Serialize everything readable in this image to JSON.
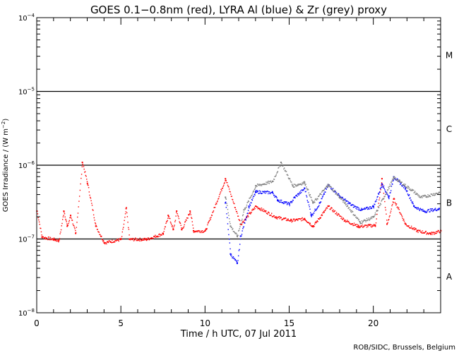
{
  "chart_data": {
    "type": "scatter",
    "title": "GOES 0.1−0.8nm (red), LYRA Al (blue) & Zr (grey) proxy",
    "xlabel": "Time / h UTC, 07 Jul 2011",
    "ylabel": "GOES Irradiance / (W m",
    "ylabel_sup": "−2",
    "ylabel_end": ")",
    "credit": "ROB/SIDC, Brussels, Belgium",
    "xlim": [
      0,
      24
    ],
    "ylim": [
      1e-08,
      0.0001
    ],
    "yscale": "log",
    "x_ticks": [
      "0",
      "5",
      "10",
      "15",
      "20"
    ],
    "y_ticks": [
      {
        "base": "10",
        "exp": "−4"
      },
      {
        "base": "10",
        "exp": "−5"
      },
      {
        "base": "10",
        "exp": "−6"
      },
      {
        "base": "10",
        "exp": "−7"
      },
      {
        "base": "10",
        "exp": "−8"
      }
    ],
    "flare_classes": [
      "M",
      "C",
      "B",
      "A"
    ],
    "class_lines": [
      1e-05,
      1e-06,
      1e-07
    ],
    "series": [
      {
        "name": "GOES 0.1-0.8nm",
        "color": "#ff0000",
        "x": [
          0,
          0.3,
          1,
          1.3,
          1.6,
          1.8,
          2.0,
          2.3,
          2.7,
          3.0,
          3.5,
          4,
          5,
          5.3,
          5.5,
          6.5,
          7.5,
          7.8,
          8.1,
          8.3,
          8.6,
          9.1,
          9.3,
          10,
          11.2,
          12.1,
          13,
          14.2,
          15.1,
          15.9,
          16.4,
          17.3,
          18.3,
          19.1,
          20.1,
          20.5,
          20.8,
          21.2,
          21.9,
          22.6,
          23.4,
          24
        ],
        "y": [
          2.4e-07,
          1.07e-07,
          1e-07,
          9.6e-08,
          2.4e-07,
          1.5e-07,
          2.1e-07,
          1.2e-07,
          1.1e-06,
          5.7e-07,
          1.5e-07,
          9e-08,
          1e-07,
          2.6e-07,
          1e-07,
          1e-07,
          1.2e-07,
          2.1e-07,
          1.35e-07,
          2.4e-07,
          1.35e-07,
          2.4e-07,
          1.3e-07,
          1.3e-07,
          6.6e-07,
          1.6e-07,
          2.8e-07,
          2e-07,
          1.8e-07,
          1.9e-07,
          1.5e-07,
          2.8e-07,
          1.8e-07,
          1.5e-07,
          1.55e-07,
          6.6e-07,
          1.6e-07,
          3.5e-07,
          1.6e-07,
          1.3e-07,
          1.2e-07,
          1.3e-07
        ]
      },
      {
        "name": "LYRA Al proxy",
        "color": "#0000ff",
        "x": [
          11.2,
          11.5,
          11.9,
          12.1,
          12.6,
          13,
          14,
          14.3,
          15,
          15.3,
          15.9,
          16.3,
          16.8,
          17.3,
          18,
          18.7,
          19.3,
          20,
          20.5,
          20.9,
          21.2,
          21.9,
          22.4,
          23,
          23.9
        ],
        "y": [
          3.1e-07,
          6.3e-08,
          4.7e-08,
          1.1e-07,
          2.8e-07,
          4.4e-07,
          4.3e-07,
          3.4e-07,
          3e-07,
          3.7e-07,
          4.9e-07,
          2.1e-07,
          3.1e-07,
          5.5e-07,
          3.8e-07,
          2.9e-07,
          2.5e-07,
          2.8e-07,
          5.6e-07,
          3.7e-07,
          7e-07,
          4.9e-07,
          2.8e-07,
          2.4e-07,
          2.6e-07
        ]
      },
      {
        "name": "LYRA Zr proxy",
        "color": "#808080",
        "x": [
          11.2,
          11.5,
          11.9,
          12.3,
          13,
          14,
          14.5,
          15.2,
          15.9,
          16.4,
          17.3,
          18.3,
          19.2,
          20,
          21.2,
          22.3,
          22.8,
          23.9
        ],
        "y": [
          3.7e-07,
          1.5e-07,
          1.1e-07,
          2.5e-07,
          5.3e-07,
          6.1e-07,
          1.1e-06,
          5.3e-07,
          5.9e-07,
          3.1e-07,
          5.5e-07,
          3.1e-07,
          1.7e-07,
          2e-07,
          6.9e-07,
          4.6e-07,
          3.7e-07,
          4.3e-07
        ]
      }
    ]
  }
}
